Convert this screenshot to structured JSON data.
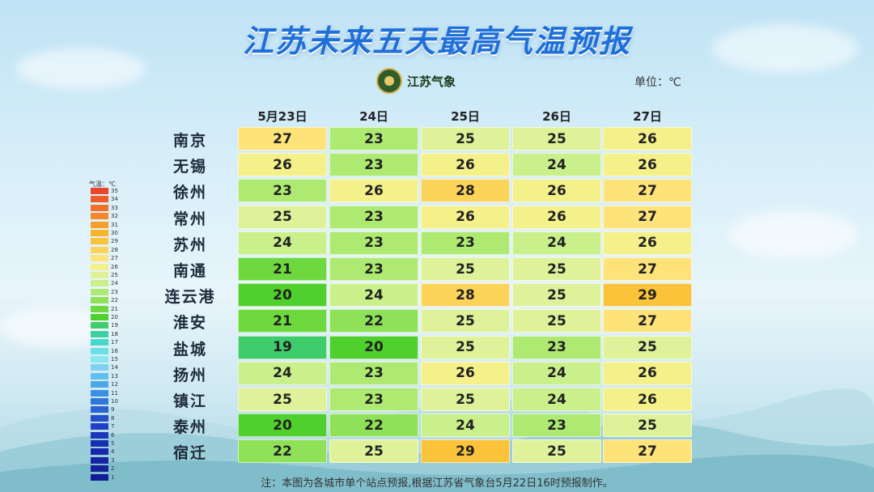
{
  "title": "江苏未来五天最高气温预报",
  "logo_text": "江苏气象",
  "unit_label": "单位：℃",
  "note": "注：本图为各城市单个站点预报,根据江苏省气象台5月22日16时预报制作。",
  "legend": {
    "title": "气温：℃",
    "levels": [
      35,
      34,
      33,
      32,
      31,
      30,
      29,
      28,
      27,
      26,
      25,
      24,
      23,
      22,
      21,
      20,
      19,
      18,
      17,
      16,
      15,
      14,
      13,
      12,
      11,
      10,
      9,
      8,
      7,
      6,
      5,
      4,
      3,
      2,
      1
    ],
    "colors": [
      "#e8452a",
      "#ee5a2a",
      "#f2712a",
      "#f5882a",
      "#f89e2a",
      "#fab42a",
      "#fbc33a",
      "#fcd45a",
      "#fde37a",
      "#f4f08a",
      "#dff29a",
      "#c9f08a",
      "#aeea72",
      "#8fe258",
      "#6ed93e",
      "#4fd02c",
      "#3fcc6a",
      "#3ed0a0",
      "#46d8c8",
      "#6ae0e6",
      "#8ae6f0",
      "#7cd2f0",
      "#5ec0ec",
      "#4aa8e8",
      "#3a90e2",
      "#3078dc",
      "#2a62d4",
      "#254ecc",
      "#2040c4",
      "#1c36bc",
      "#1a2eb4",
      "#1828ac",
      "#1624a4",
      "#14209c",
      "#121c94"
    ]
  },
  "chart_data": {
    "type": "table",
    "title": "江苏未来五天最高气温预报",
    "columns": [
      "5月23日",
      "24日",
      "25日",
      "26日",
      "27日"
    ],
    "rows": [
      {
        "city": "南京",
        "values": [
          27,
          23,
          25,
          25,
          26
        ]
      },
      {
        "city": "无锡",
        "values": [
          26,
          23,
          26,
          24,
          26
        ]
      },
      {
        "city": "徐州",
        "values": [
          23,
          26,
          28,
          26,
          27
        ]
      },
      {
        "city": "常州",
        "values": [
          25,
          23,
          26,
          26,
          27
        ]
      },
      {
        "city": "苏州",
        "values": [
          24,
          23,
          23,
          24,
          26
        ]
      },
      {
        "city": "南通",
        "values": [
          21,
          23,
          25,
          25,
          27
        ]
      },
      {
        "city": "连云港",
        "values": [
          20,
          24,
          28,
          25,
          29
        ]
      },
      {
        "city": "淮安",
        "values": [
          21,
          22,
          25,
          25,
          27
        ]
      },
      {
        "city": "盐城",
        "values": [
          19,
          20,
          25,
          23,
          25
        ]
      },
      {
        "city": "扬州",
        "values": [
          24,
          23,
          26,
          24,
          26
        ]
      },
      {
        "city": "镇江",
        "values": [
          25,
          23,
          25,
          24,
          26
        ]
      },
      {
        "city": "泰州",
        "values": [
          20,
          22,
          24,
          23,
          25
        ]
      },
      {
        "city": "宿迁",
        "values": [
          22,
          25,
          29,
          25,
          27
        ]
      }
    ],
    "unit": "℃"
  }
}
